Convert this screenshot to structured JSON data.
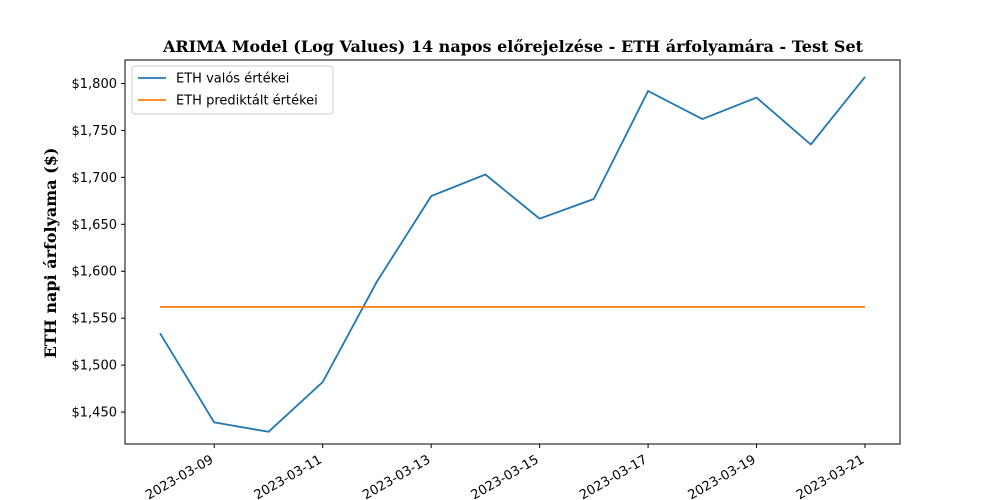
{
  "chart_data": {
    "type": "line",
    "title": "ARIMA Model (Log Values) 14 napos előrejelzése - ETH árfolyamára - Test Set",
    "xlabel": "",
    "ylabel": "ETH napi árfolyama ($)",
    "x": [
      "2023-03-08",
      "2023-03-09",
      "2023-03-10",
      "2023-03-11",
      "2023-03-12",
      "2023-03-13",
      "2023-03-14",
      "2023-03-15",
      "2023-03-16",
      "2023-03-17",
      "2023-03-18",
      "2023-03-19",
      "2023-03-20",
      "2023-03-21"
    ],
    "x_ticks": [
      "2023-03-09",
      "2023-03-11",
      "2023-03-13",
      "2023-03-15",
      "2023-03-17",
      "2023-03-19",
      "2023-03-21"
    ],
    "y_ticks": [
      1450,
      1500,
      1550,
      1600,
      1650,
      1700,
      1750,
      1800
    ],
    "y_tick_labels": [
      "$1,450",
      "$1,500",
      "$1,550",
      "$1,600",
      "$1,650",
      "$1,700",
      "$1,750",
      "$1,800"
    ],
    "ylim": [
      1416,
      1825
    ],
    "series": [
      {
        "name": "ETH valós értékei",
        "color": "#1f77b4",
        "values": [
          1534,
          1439,
          1429,
          1482,
          1589,
          1680,
          1703,
          1656,
          1677,
          1792,
          1762,
          1785,
          1735,
          1807
        ]
      },
      {
        "name": "ETH prediktált értékei",
        "color": "#ff7f0e",
        "values": [
          1562,
          1562,
          1562,
          1562,
          1562,
          1562,
          1562,
          1562,
          1562,
          1562,
          1562,
          1562,
          1562,
          1562
        ]
      }
    ],
    "legend": "top-left",
    "grid": false
  }
}
